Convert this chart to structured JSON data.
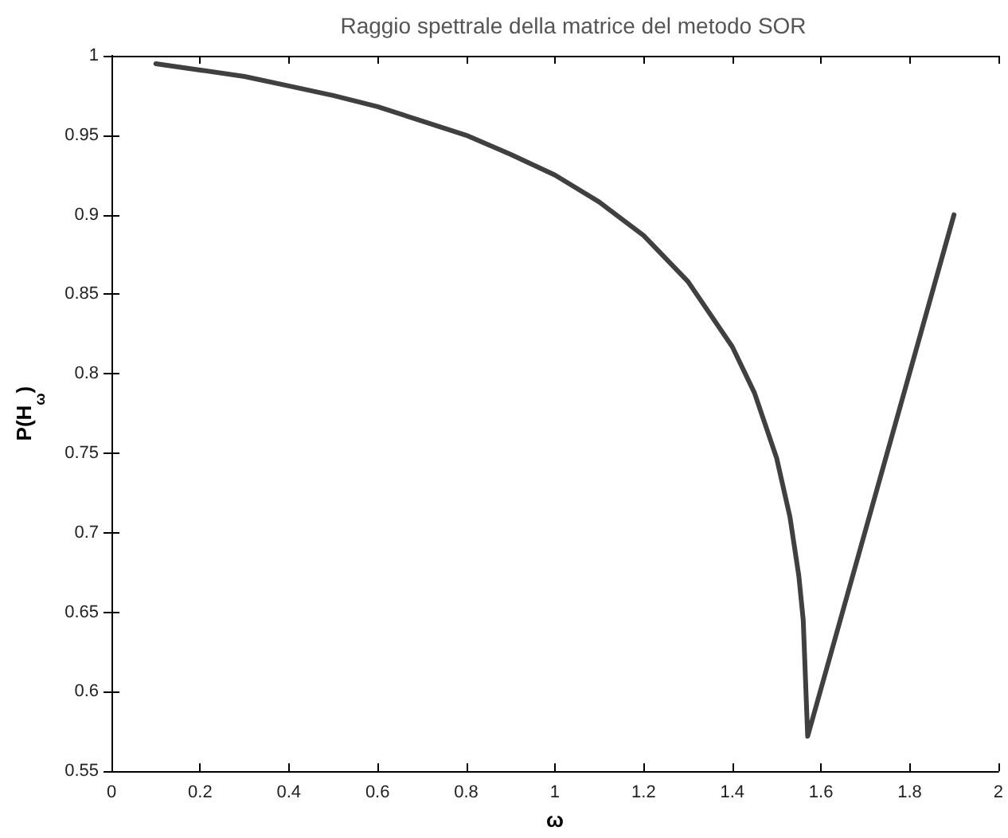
{
  "chart_data": {
    "type": "line",
    "title": "Raggio spettrale della matrice del metodo SOR",
    "xlabel": "ω",
    "ylabel": "P(H$_{ω}$)",
    "series": [
      {
        "color": "#404040",
        "x": [
          0.1,
          0.2,
          0.3,
          0.4,
          0.5,
          0.6,
          0.7,
          0.8,
          0.9,
          1.0,
          1.1,
          1.2,
          1.3,
          1.4,
          1.45,
          1.5,
          1.53,
          1.55,
          1.56,
          1.57,
          1.9
        ],
        "values": [
          0.995,
          0.991,
          0.987,
          0.981,
          0.975,
          0.968,
          0.959,
          0.95,
          0.938,
          0.925,
          0.908,
          0.887,
          0.858,
          0.817,
          0.788,
          0.747,
          0.71,
          0.673,
          0.645,
          0.572,
          0.9
        ]
      }
    ],
    "xlim": [
      0,
      2
    ],
    "xticks": [
      0,
      0.2,
      0.4,
      0.6,
      0.8,
      1,
      1.2,
      1.4,
      1.6,
      1.8,
      2
    ],
    "ylim": [
      0.55,
      1
    ],
    "yticks": [
      0.55,
      0.6,
      0.65,
      0.7,
      0.75,
      0.8,
      0.85,
      0.9,
      0.95,
      1
    ],
    "grid": false,
    "marker": "none",
    "line_style": "solid"
  }
}
